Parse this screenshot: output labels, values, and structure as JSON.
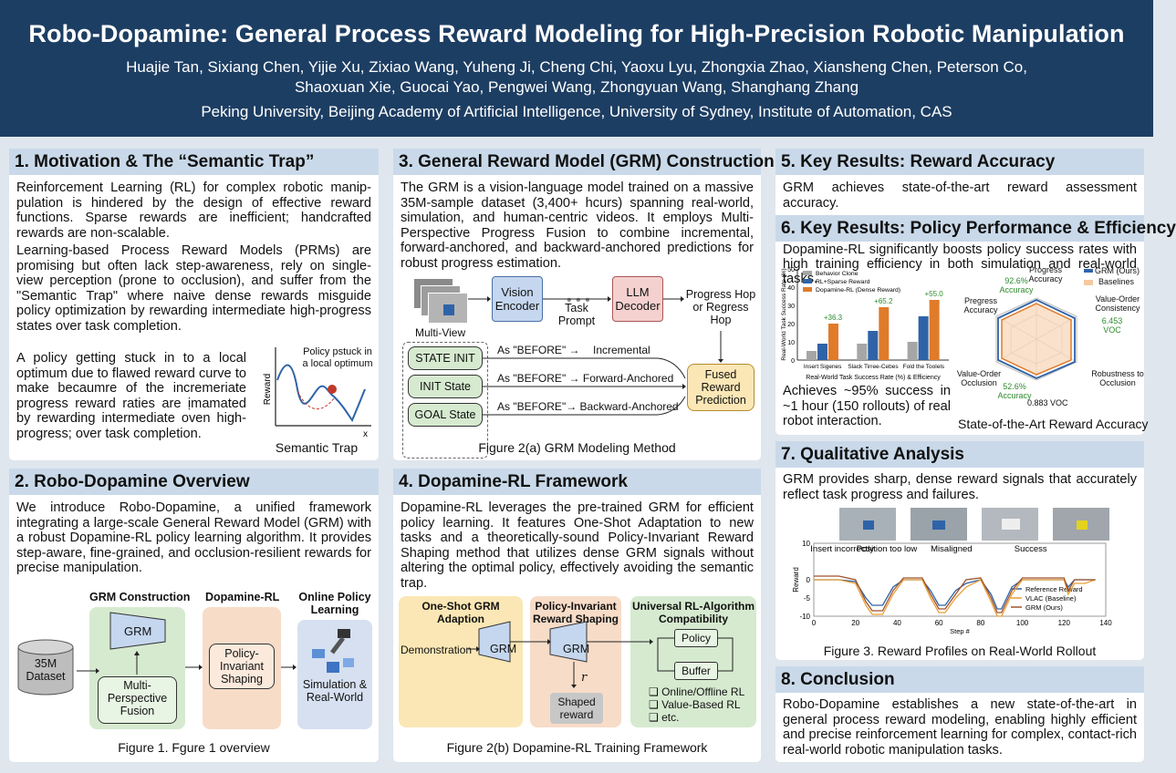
{
  "header": {
    "title": "Robo-Dopamine: General Process Reward Modeling for High-Precision Robotic Manipulation",
    "authors_line1": "Huajie Tan, Sixiang Chen, Yijie Xu, Zixiao Wang, Yuheng Ji, Cheng Chi, Yaoxu Lyu, Zhongxia Zhao, Xiansheng Chen, Peterson Co,",
    "authors_line2": "Shaoxuan Xie, Guocai Yao, Pengwei Wang, Zhongyuan Wang, Shanghang Zhang",
    "affiliations": "Peking University, Beijing Academy of Artificial Intelligence, University of Sydney, Institute of Automation, CAS"
  },
  "s1": {
    "title": "1. Motivation & The “Semantic Trap”",
    "p1": "Reinforcement Learning (RL) for complex robotic manip-pulation is hindered by the design of effective reward functions. Sparse rewards are inefficient; handcrafted rewards are non-scalable.",
    "p2": "Learning-based Process Reward Models (PRMs) are promising but often lack step-awareness, rely on single-view perception (prone to occlusion), and suffer from the \"Semantic Trap\" where naive dense rewards misguide policy optimization by rewarding intermediate high-progress states over task completion.",
    "p3": "A policy getting stuck in to a local optimum due to flawed reward curve to make becaumre of the incremeriate progress reward raties are ịmamated by rewarding intermediate oven high-progress; over task completion.",
    "fig_annot": "Policy pstuck in a local optimum",
    "fig_ylabel": "Reward",
    "fig_xlabel": "x",
    "caption": "Semantic Trap"
  },
  "s2": {
    "title": "2. Robo-Dopamine Overview",
    "p1": "We introduce Robo-Dopamine, a unified framework integrating a large-scale General Reward Model (GRM) with a robust Dopamine-RL policy learning algorithm. It provides step-aware, fine-grained, and occlusion-resilient rewards for precise manipulation.",
    "col1": "GRM Construction",
    "col2": "Dopamine-RL",
    "col3": "Online Policy Learning",
    "dataset": "35M Dataset",
    "grm": "GRM",
    "fusion": "Multi-Perspective Fusion",
    "shaping": "Policy-Invariant Shaping",
    "sim": "Simulation & Real-World",
    "caption": "Figure 1. Fgure 1 overview"
  },
  "s3": {
    "title": "3. General Reward Model (GRM) Construction",
    "p1": "The GRM is a vision-language model trained on a massive 35M-sample dataset (3,400+ hcurs) spanning real-world, simulation, and human-centric videos. It employs Multi-Perspective Progress Fusion to combine incremental, forward-anchored, and backward-anchored predictions for robust progress estimation.",
    "multiview": "Multi-View",
    "vision_encoder": "Vision Encoder",
    "task_prompt": "Task Prompt",
    "llm_decoder": "LLM Decoder",
    "progress_hop": "Progress Hop or Regress Hop",
    "state_init": "STATE INIT",
    "init_state": "INIT State",
    "goal_state": "GOAL State",
    "arrow1": "As \"BEFORE\" →",
    "arrow1b": "Incremental",
    "arrow2": "As \"BEFORE\" → Forward-Anchored",
    "arrow3": "As \"BEFORE\"→ Backward-Anchored",
    "fused": "Fused Reward Prediction",
    "caption": "Figure 2(a) GRM Modeling Method"
  },
  "s4": {
    "title": "4. Dopamine-RL Framework",
    "p1": "Dopamine-RL leverages the pre-trained GRM for efficient policy learning. It features One-Shot Adaptation to new tasks and a theoretically-sound Policy-Invariant Reward Shaping method that utilizes dense GRM signals without altering the optimal policy, effectively avoiding the semantic trap.",
    "b1_title": "One-Shot GRM Adaption",
    "demo": "Demonstration",
    "grm": "GRM",
    "b2_title": "Policy-Invariant Reward Shaping",
    "r": "r",
    "shaped": "Shaped reward",
    "b3_title": "Universal RL-Algorithm Compatibility",
    "policy": "Policy",
    "buffer": "Buffer",
    "opt1": "❑ Online/Offline RL",
    "opt2": "❑ Value-Based RL",
    "opt3": "❑ etc.",
    "caption": "Figure 2(b) Dopamine-RL Training Framework"
  },
  "s5": {
    "title": "5. Key Results: Reward Accuracy",
    "p1": "GRM achieves state-of-the-art reward assessment accuracy."
  },
  "s6": {
    "title": "6. Key Results: Policy Performance & Efficiency",
    "p1": "Dopamine-RL significantly boosts policy success rates with high training efficiency in both simulation and real-world tasks.",
    "p2": "Achieves ~95% success in ~1 hour (150 rollouts) of real robot interaction.",
    "radar_caption": "State-of-the-Art Reward Accuracy",
    "radar_legend": [
      "GRM (Ours)",
      "Baselines"
    ],
    "radar_axes": [
      "Progress Accuracy",
      "Value-Order Consistency",
      "Robustness to Occlusion",
      "0.883 VOC",
      "Value-Order Occlusion",
      "Pregress Accuracy"
    ],
    "radar_notes": [
      "92.6% Accuracy",
      "6.453 VOC",
      "52.6% Accuracy"
    ]
  },
  "s7": {
    "title": "7. Qualitative Analysis",
    "p1": "GRM provides sharp, dense reward signals that accurately reflect task progress and failures.",
    "labels": [
      "Insert incorrectly",
      "Position too low",
      "Misaligned",
      "Success"
    ],
    "caption": "Figure 3. Reward Profiles on Real-World Rollout"
  },
  "s8": {
    "title": "8. Conclusion",
    "p1": "Robo-Dopamine establishes a new state-of-the-art in general process reward modeling, enabling highly efficient and precise reinforcement learning for complex, contact-rich real-world robotic manipulation tasks."
  },
  "colors": {
    "header": "#1d3e63",
    "panel_head": "#c9d9e9",
    "gray": "#a6a6a6",
    "blue": "#2f63a8",
    "orange": "#e07b2a",
    "green": "#d6ead0",
    "peach": "#f7dcc8",
    "lav": "#d6e0f0",
    "yellow": "#fbe7b5",
    "ice": "#cfe3f3",
    "pink": "#f4d1cf"
  },
  "chart_data": [
    {
      "type": "bar",
      "title": "",
      "xlabel": "Real-World Task Success Rate (%) & Efficiency",
      "ylabel": "Real-World Task Success Rate (%)",
      "ylim": [
        0,
        50
      ],
      "categories": [
        "Insert Sigenes",
        "Slack Tirree-Cebes",
        "Fold the Toolels"
      ],
      "series": [
        {
          "name": "Behavior Clone",
          "values": [
            5,
            9,
            10
          ]
        },
        {
          "name": "RL+Sparse Reward",
          "values": [
            9,
            16,
            24
          ]
        },
        {
          "name": "Dopamine-RL (Dense Reward)",
          "values": [
            20,
            29,
            33
          ]
        }
      ],
      "annotations": [
        "+36.3",
        "+65.2",
        "+55.0"
      ],
      "legend": "top-left"
    },
    {
      "type": "line",
      "title": "",
      "xlabel": "Step #",
      "ylabel": "Reward",
      "xlim": [
        0,
        140
      ],
      "ylim": [
        -10,
        10
      ],
      "xticks": [
        0,
        20,
        40,
        60,
        80,
        100,
        120,
        140
      ],
      "yticks": [
        10,
        0,
        -5,
        -10
      ],
      "series": [
        {
          "name": "Reference Reward",
          "x": [
            0,
            12,
            20,
            25,
            28,
            33,
            38,
            43,
            52,
            56,
            60,
            63,
            68,
            73,
            80,
            85,
            88,
            90,
            95,
            100,
            110,
            115,
            120,
            122,
            125,
            130,
            135
          ],
          "y": [
            0,
            0,
            -0.5,
            -5,
            -7,
            -7,
            -2,
            0,
            0,
            -3,
            -7,
            -7,
            -3,
            -1,
            0,
            -4,
            -8,
            -8,
            -2,
            0,
            0,
            0,
            0,
            -2,
            0,
            0,
            0
          ]
        },
        {
          "name": "VLAC (Baseline)",
          "x": [
            0,
            12,
            20,
            25,
            28,
            33,
            38,
            43,
            52,
            56,
            60,
            63,
            68,
            73,
            80,
            85,
            88,
            90,
            95,
            100,
            110,
            115,
            120,
            122,
            125,
            130,
            135
          ],
          "y": [
            0,
            0,
            -1,
            -7,
            -9.5,
            -9.5,
            -4,
            0,
            0,
            -5,
            -9,
            -9,
            -5,
            -2,
            0,
            -6,
            -10,
            -10,
            -4,
            0,
            0,
            0,
            0,
            -4,
            -1,
            -1,
            0
          ]
        },
        {
          "name": "GRM (Ours)",
          "x": [
            0,
            12,
            20,
            25,
            28,
            33,
            38,
            43,
            52,
            56,
            60,
            63,
            68,
            73,
            80,
            85,
            88,
            90,
            95,
            100,
            110,
            115,
            120,
            122,
            125,
            130,
            135
          ],
          "y": [
            1,
            1,
            0,
            -6,
            -8.5,
            -8.5,
            -3,
            0.5,
            0.5,
            -4,
            -8,
            -8,
            -4,
            0,
            0.5,
            -5,
            -9,
            -9,
            -3,
            0.5,
            0.5,
            0.5,
            0.5,
            -3,
            0,
            0,
            0
          ]
        }
      ],
      "legend": "bottom-right"
    }
  ]
}
